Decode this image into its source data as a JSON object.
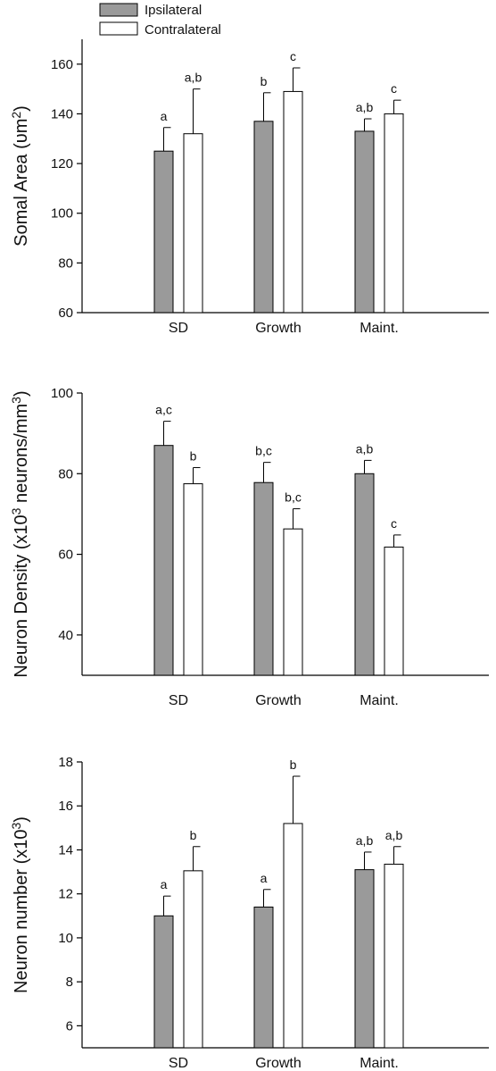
{
  "legend": {
    "items": [
      {
        "label": "Ipsilateral",
        "fill": "#9a9a9a"
      },
      {
        "label": "Contralateral",
        "fill": "#ffffff"
      }
    ]
  },
  "chart_data": [
    {
      "type": "bar",
      "categories": [
        "SD",
        "Growth",
        "Maint."
      ],
      "series": [
        {
          "name": "Ipsilateral",
          "values": [
            125,
            137,
            133
          ],
          "errors": [
            9.5,
            11.5,
            5
          ],
          "labels": [
            "a",
            "b",
            "a,b"
          ]
        },
        {
          "name": "Contralateral",
          "values": [
            132,
            149,
            140
          ],
          "errors": [
            18,
            9.5,
            5.5
          ],
          "labels": [
            "a,b",
            "c",
            "c"
          ]
        }
      ],
      "ylabel_main": "Somal Area (υm",
      "ylabel_sup": "2",
      "ylabel_end": ")",
      "ylim": [
        60,
        170
      ],
      "yticks": [
        60,
        80,
        100,
        120,
        140,
        160
      ],
      "legend_position": "top-left"
    },
    {
      "type": "bar",
      "categories": [
        "SD",
        "Growth",
        "Maint."
      ],
      "series": [
        {
          "name": "Ipsilateral",
          "values": [
            87,
            77.8,
            80
          ],
          "errors": [
            6,
            5,
            3.3
          ],
          "labels": [
            "a,c",
            "b,c",
            "a,b"
          ]
        },
        {
          "name": "Contralateral",
          "values": [
            77.5,
            66.3,
            61.8
          ],
          "errors": [
            4,
            5,
            3
          ],
          "labels": [
            "b",
            "b,c",
            "c"
          ]
        }
      ],
      "ylabel_main": "Neuron Density (x10",
      "ylabel_sup": "3",
      "ylabel_mid": " neurons/mm",
      "ylabel_sup2": "3",
      "ylabel_end": ")",
      "ylim": [
        30,
        100
      ],
      "yticks": [
        40,
        60,
        80,
        100
      ]
    },
    {
      "type": "bar",
      "categories": [
        "SD",
        "Growth",
        "Maint."
      ],
      "series": [
        {
          "name": "Ipsilateral",
          "values": [
            11,
            11.4,
            13.1
          ],
          "errors": [
            0.9,
            0.8,
            0.8
          ],
          "labels": [
            "a",
            "a",
            "a,b"
          ]
        },
        {
          "name": "Contralateral",
          "values": [
            13.05,
            15.2,
            13.35
          ],
          "errors": [
            1.1,
            2.15,
            0.8
          ],
          "labels": [
            "b",
            "b",
            "a,b"
          ]
        }
      ],
      "ylabel_main": "Neuron number (x10",
      "ylabel_sup": "3",
      "ylabel_end": ")",
      "ylim": [
        5,
        18
      ],
      "yticks": [
        6,
        8,
        10,
        12,
        14,
        16,
        18
      ]
    }
  ]
}
